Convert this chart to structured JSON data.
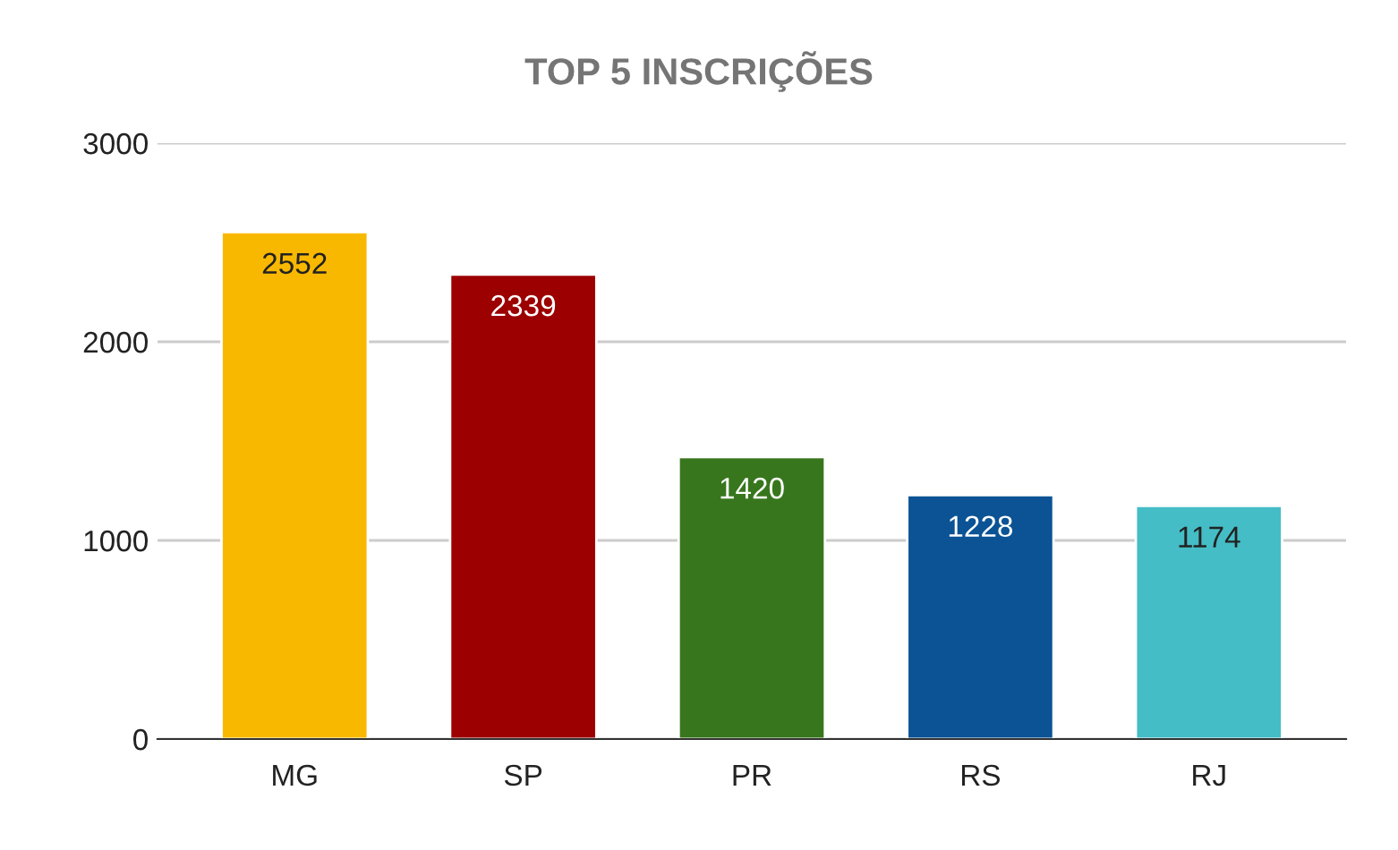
{
  "chart_data": {
    "type": "bar",
    "title": "TOP 5 INSCRIÇÕES",
    "categories": [
      "MG",
      "SP",
      "PR",
      "RS",
      "RJ"
    ],
    "values": [
      2552,
      2339,
      1420,
      1228,
      1174
    ],
    "colors": [
      "#f9b800",
      "#9c0000",
      "#38761d",
      "#0b5394",
      "#45bdc6"
    ],
    "ylim": [
      0,
      3000
    ],
    "yticks": [
      0,
      1000,
      2000,
      3000
    ],
    "grid": "y",
    "data_labels": true
  }
}
